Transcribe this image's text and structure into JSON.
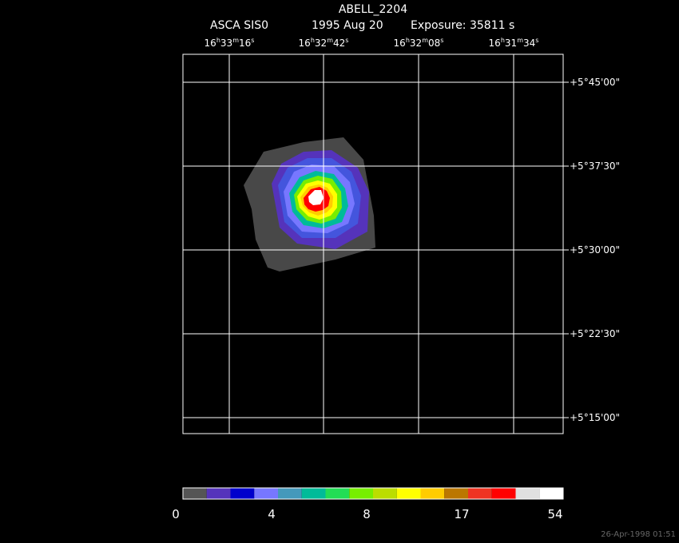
{
  "header": {
    "title": "ABELL_2204",
    "instrument": "ASCA SIS0",
    "date": "1995 Aug 20",
    "exposure": "Exposure: 35811 s"
  },
  "ra_labels": [
    [
      "16",
      "h",
      "33",
      "m",
      "16",
      "s"
    ],
    [
      "16",
      "h",
      "32",
      "m",
      "42",
      "s"
    ],
    [
      "16",
      "h",
      "32",
      "m",
      "08",
      "s"
    ],
    [
      "16",
      "h",
      "31",
      "m",
      "34",
      "s"
    ]
  ],
  "dec_labels": [
    "+5°45'00\"",
    "+5°37'30\"",
    "+5°30'00\"",
    "+5°22'30\"",
    "+5°15'00\""
  ],
  "colorbar": {
    "colors": [
      "#555555",
      "#5533bb",
      "#0000cc",
      "#7777ff",
      "#4499bb",
      "#00bb99",
      "#22dd55",
      "#77ee00",
      "#bbdd00",
      "#ffff00",
      "#ffcc00",
      "#bb7700",
      "#ee3322",
      "#ff0000",
      "#e0e0e0",
      "#ffffff"
    ],
    "labels": [
      "0",
      "4",
      "8",
      "17",
      "54"
    ]
  },
  "footer": "26-Apr-1998 01:51"
}
